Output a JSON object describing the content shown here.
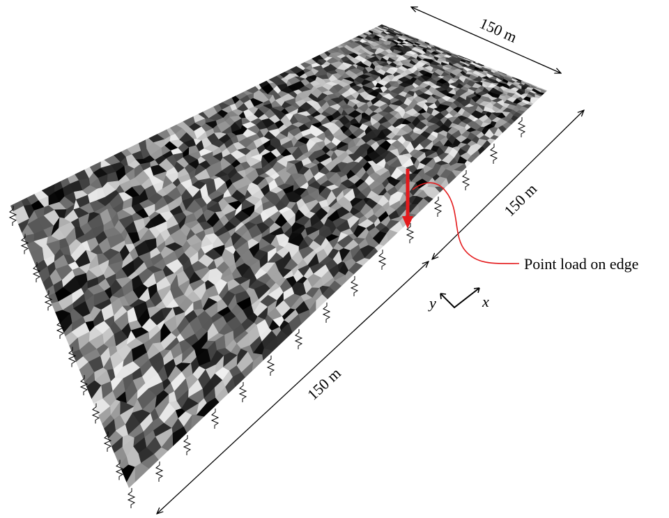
{
  "dimensions": {
    "top": "150 m",
    "right": "150 m",
    "bottom": "150 m"
  },
  "annotation": "Point load on edge",
  "axes": {
    "y": "y",
    "x": "x"
  }
}
